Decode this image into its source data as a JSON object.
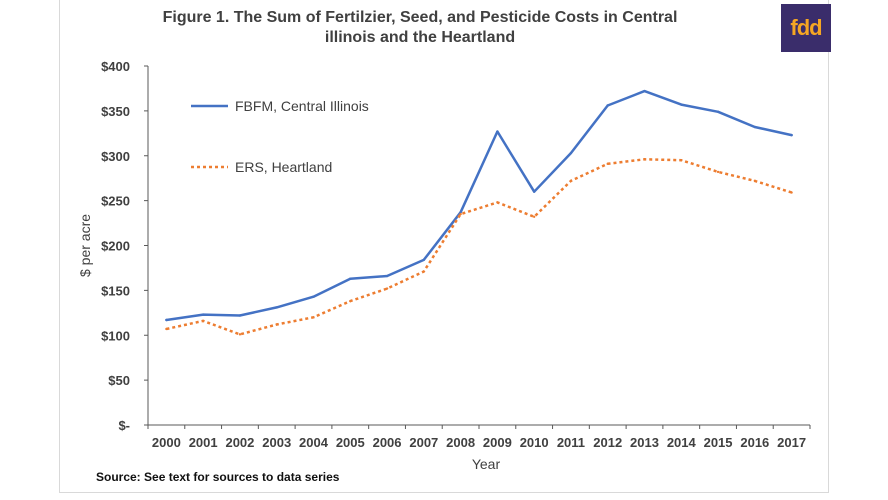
{
  "source": "Source:  See text for sources to data series",
  "logo_text": "fdd",
  "colors": {
    "series1": "#4472c4",
    "series2": "#ed7d31",
    "axis": "#595959"
  },
  "chart_data": {
    "type": "line",
    "title": "Figure 1. The Sum of Fertilzier, Seed, and Pesticide Costs in Central illinois and the Heartland",
    "title_lines": [
      "Figure 1. The Sum of Fertilzier, Seed, and Pesticide Costs in Central",
      "illinois and the Heartland"
    ],
    "xlabel": "Year",
    "ylabel": "$ per acre",
    "x": [
      "2000",
      "2001",
      "2002",
      "2003",
      "2004",
      "2005",
      "2006",
      "2007",
      "2008",
      "2009",
      "2010",
      "2011",
      "2012",
      "2013",
      "2014",
      "2015",
      "2016",
      "2017"
    ],
    "ylim": [
      0,
      400
    ],
    "yticks": [
      0,
      50,
      100,
      150,
      200,
      250,
      300,
      350,
      400
    ],
    "ytick_labels": [
      "$-",
      "$50",
      "$100",
      "$150",
      "$200",
      "$250",
      "$300",
      "$350",
      "$400"
    ],
    "grid": false,
    "legend_position": "top-left",
    "series": [
      {
        "name": "FBFM, Central Illinois",
        "style": "solid",
        "values": [
          117,
          123,
          122,
          131,
          143,
          163,
          166,
          184,
          237,
          327,
          260,
          303,
          356,
          372,
          357,
          349,
          332,
          323
        ]
      },
      {
        "name": "ERS, Heartland",
        "style": "dotted",
        "values": [
          107,
          116,
          101,
          112,
          120,
          138,
          152,
          171,
          235,
          248,
          232,
          272,
          291,
          296,
          295,
          282,
          272,
          259
        ]
      }
    ]
  }
}
